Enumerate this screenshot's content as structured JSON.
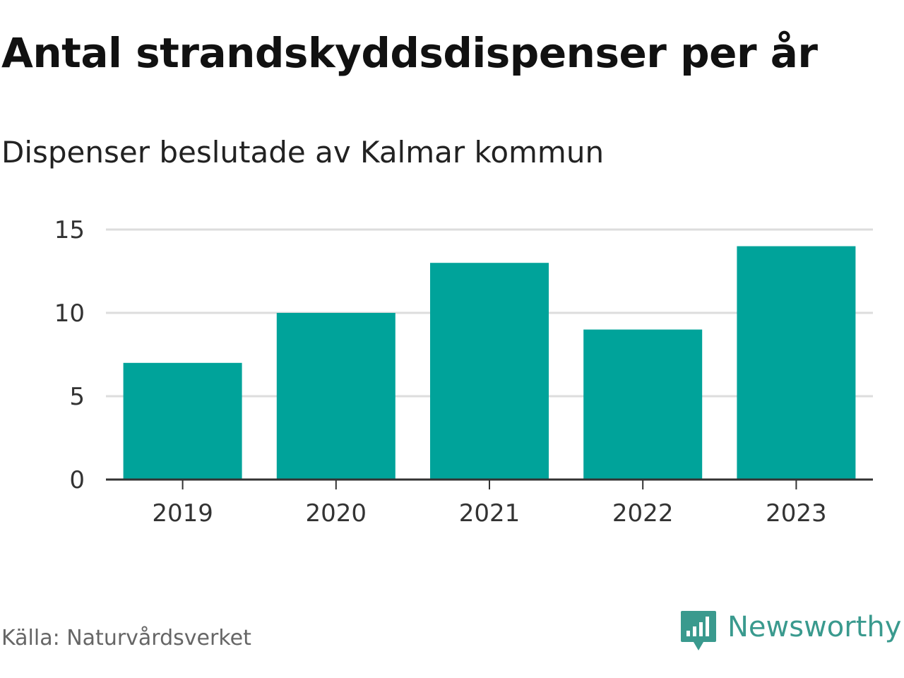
{
  "header": {
    "title": "Antal strandskyddsdispenser per år",
    "subtitle": "Dispenser beslutade av Kalmar kommun"
  },
  "footer": {
    "source": "Källa: Naturvårdsverket",
    "brand": "Newsworthy",
    "brand_icon": "newsworthy-logo-icon"
  },
  "colors": {
    "bar": "#00a39a",
    "grid": "#dddddd",
    "axis": "#333333",
    "brand": "#3a9a8e"
  },
  "chart_data": {
    "type": "bar",
    "title": "Antal strandskyddsdispenser per år",
    "subtitle": "Dispenser beslutade av Kalmar kommun",
    "xlabel": "",
    "ylabel": "",
    "categories": [
      "2019",
      "2020",
      "2021",
      "2022",
      "2023"
    ],
    "values": [
      7,
      10,
      13,
      9,
      14
    ],
    "ylim": [
      0,
      15
    ],
    "yticks": [
      0,
      5,
      10,
      15
    ],
    "grid": true,
    "legend": "none"
  }
}
